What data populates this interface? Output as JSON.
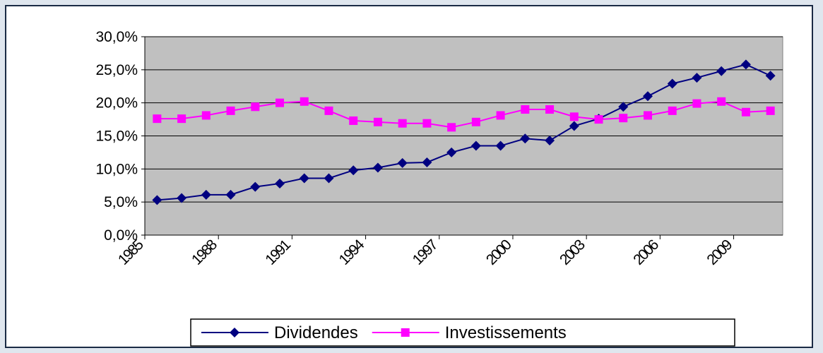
{
  "chart_data": {
    "type": "line",
    "categories": [
      "1985",
      null,
      null,
      "1988",
      null,
      null,
      "1991",
      null,
      null,
      "1994",
      null,
      null,
      "1997",
      null,
      null,
      "2000",
      null,
      null,
      "2003",
      null,
      null,
      "2006",
      null,
      null,
      "2009",
      null
    ],
    "series": [
      {
        "name": "Dividendes",
        "color": "#000080",
        "marker": "diamond",
        "values": [
          5.3,
          5.6,
          6.1,
          6.1,
          7.3,
          7.8,
          8.6,
          8.6,
          9.8,
          10.2,
          10.9,
          11.0,
          12.5,
          13.5,
          13.5,
          14.6,
          14.3,
          16.5,
          17.6,
          19.4,
          21.0,
          22.9,
          23.8,
          24.8,
          25.8,
          24.1
        ]
      },
      {
        "name": "Investissements",
        "color": "#ff00ff",
        "marker": "square",
        "values": [
          17.6,
          17.6,
          18.1,
          18.8,
          19.4,
          20.0,
          20.2,
          18.8,
          17.3,
          17.1,
          16.9,
          16.9,
          16.3,
          17.1,
          18.1,
          19.0,
          19.0,
          17.9,
          17.5,
          17.7,
          18.1,
          18.8,
          19.9,
          20.2,
          18.6,
          18.8
        ]
      }
    ],
    "ylim": [
      0,
      30
    ],
    "yticks": [
      {
        "value": 0,
        "label": "0,0%"
      },
      {
        "value": 5,
        "label": "5,0%"
      },
      {
        "value": 10,
        "label": "10,0%"
      },
      {
        "value": 15,
        "label": "15,0%"
      },
      {
        "value": 20,
        "label": "20,0%"
      },
      {
        "value": 25,
        "label": "25,0%"
      },
      {
        "value": 30,
        "label": "30,0%"
      }
    ],
    "grid": true,
    "plot_background": "#c0c0c0",
    "legend": "bottom"
  }
}
